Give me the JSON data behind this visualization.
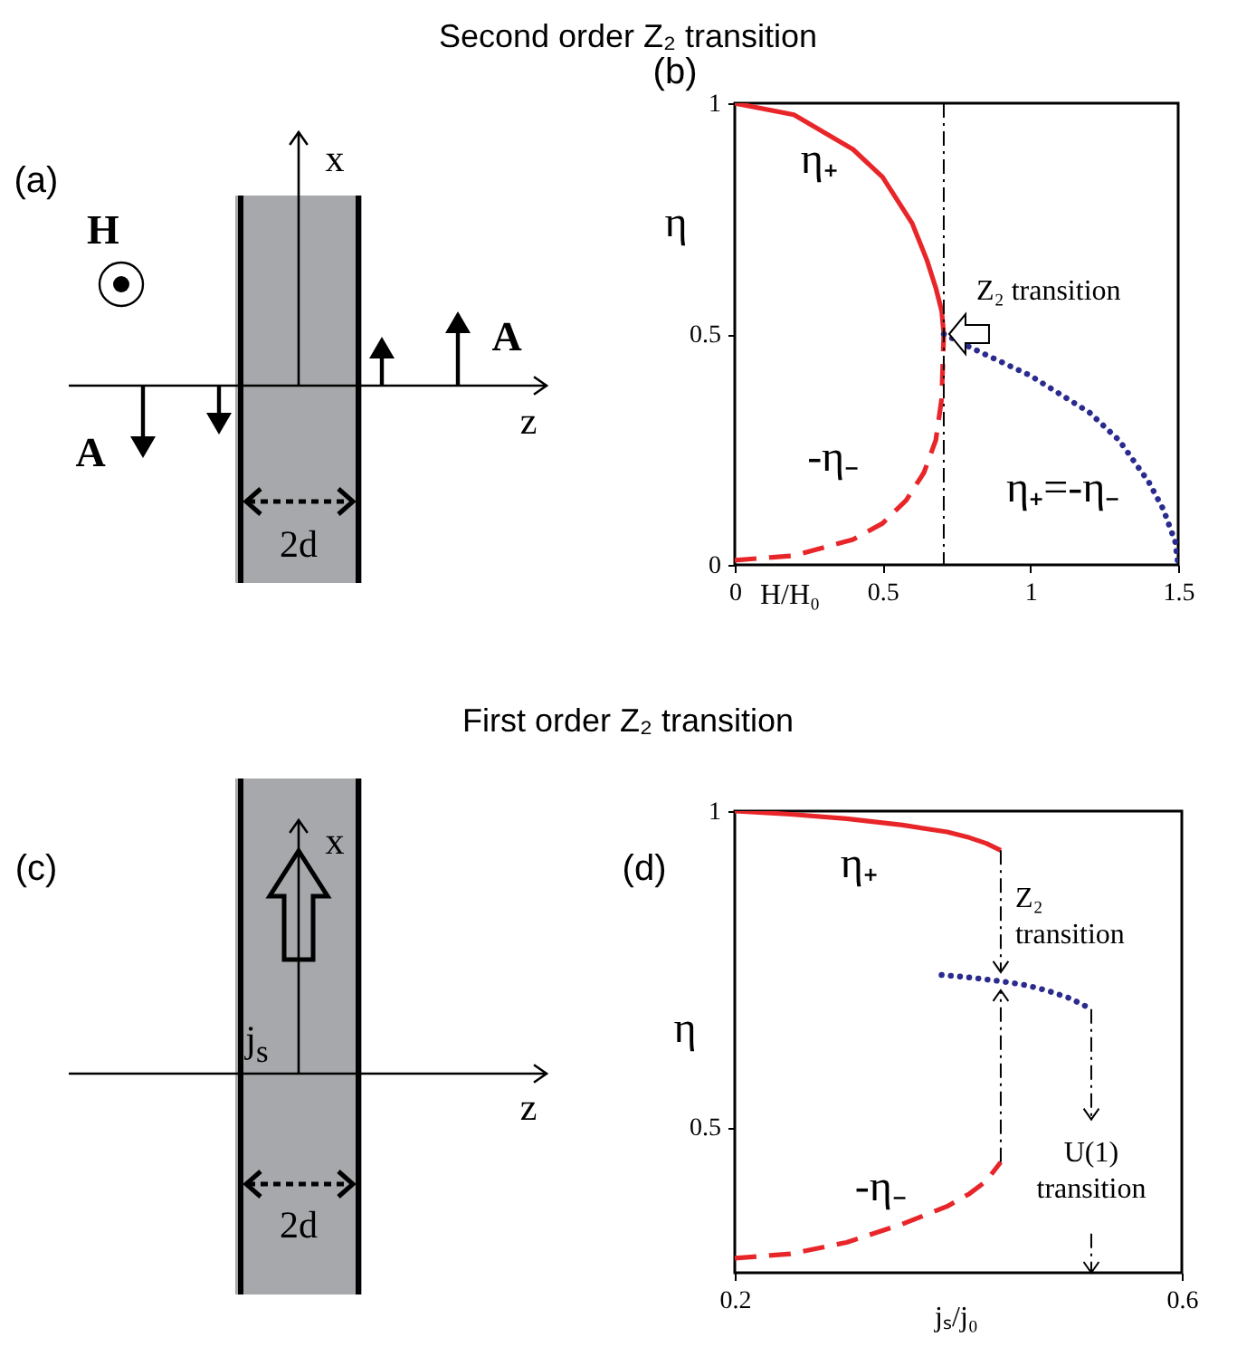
{
  "chart_data": [
    {
      "type": "other",
      "title": "Second order Z₂ transition",
      "annotations": [
        "(a)",
        "H",
        "x",
        "z",
        "A",
        "A",
        "2d"
      ]
    },
    {
      "type": "line",
      "xlabel": "H/H₀",
      "ylabel": "η",
      "xlim": [
        0,
        1.5
      ],
      "ylim": [
        0,
        1
      ],
      "xticks": [
        0,
        0.5,
        1,
        1.5
      ],
      "yticks": [
        0,
        0.5,
        1
      ],
      "series": [
        {
          "name": "η₊",
          "color": "#e8262a",
          "line_style": "solid",
          "x": [
            0,
            0.2,
            0.4,
            0.5,
            0.6,
            0.65,
            0.68,
            0.7,
            0.707
          ],
          "values": [
            1,
            0.975,
            0.9,
            0.84,
            0.74,
            0.66,
            0.6,
            0.55,
            0.5
          ]
        },
        {
          "name": "-η₋",
          "color": "#e8262a",
          "line_style": "dashed",
          "x": [
            0,
            0.2,
            0.4,
            0.5,
            0.58,
            0.64,
            0.68,
            0.7,
            0.707
          ],
          "values": [
            0.01,
            0.02,
            0.055,
            0.09,
            0.14,
            0.2,
            0.27,
            0.36,
            0.5
          ]
        },
        {
          "name": "η₊=-η₋",
          "color": "#2b2b8f",
          "line_style": "dotted",
          "x": [
            0.707,
            0.8,
            0.9,
            1,
            1.1,
            1.2,
            1.3,
            1.4,
            1.45,
            1.49,
            1.5
          ],
          "values": [
            0.5,
            0.47,
            0.44,
            0.41,
            0.37,
            0.33,
            0.27,
            0.18,
            0.12,
            0.05,
            0
          ]
        }
      ],
      "ref_lines": [
        {
          "axis": "x",
          "value": 0.707,
          "line_style": "dashdot"
        }
      ],
      "annotations": [
        "(b)",
        {
          "text": "Z₂ transition",
          "x": 0.707,
          "y": 0.5
        }
      ]
    },
    {
      "type": "other",
      "title": "First order Z₂ transition",
      "annotations": [
        "(c)",
        "x",
        "z",
        "j$_{s}$",
        "2d"
      ]
    },
    {
      "type": "line",
      "xlabel": "jₛ/j₀",
      "ylabel": "η",
      "xlim": [
        0.2,
        0.6
      ],
      "ylim": [
        0.27,
        1
      ],
      "xticks": [
        0.2,
        0.6
      ],
      "yticks": [
        0.5,
        1
      ],
      "series": [
        {
          "name": "η₊",
          "color": "#e8262a",
          "line_style": "solid",
          "x": [
            0.2,
            0.25,
            0.3,
            0.35,
            0.39,
            0.41,
            0.425,
            0.438
          ],
          "values": [
            1,
            0.995,
            0.988,
            0.978,
            0.967,
            0.958,
            0.949,
            0.938
          ]
        },
        {
          "name": "-η₋",
          "color": "#e8262a",
          "line_style": "dashed",
          "x": [
            0.2,
            0.25,
            0.3,
            0.35,
            0.39,
            0.41,
            0.425,
            0.438
          ],
          "values": [
            0.293,
            0.3,
            0.318,
            0.347,
            0.375,
            0.395,
            0.415,
            0.445
          ]
        },
        {
          "color": "#2b2b8f",
          "line_style": "dotted",
          "x": [
            0.385,
            0.41,
            0.438,
            0.46,
            0.48,
            0.5,
            0.519
          ],
          "values": [
            0.741,
            0.737,
            0.731,
            0.725,
            0.716,
            0.704,
            0.687
          ]
        }
      ],
      "annotations": [
        "(d)",
        {
          "text": "Z₂ transition",
          "x": 0.438,
          "y": 0.731
        },
        {
          "text": "U(1) transition",
          "x": 0.519,
          "y": 0.687
        }
      ]
    }
  ]
}
